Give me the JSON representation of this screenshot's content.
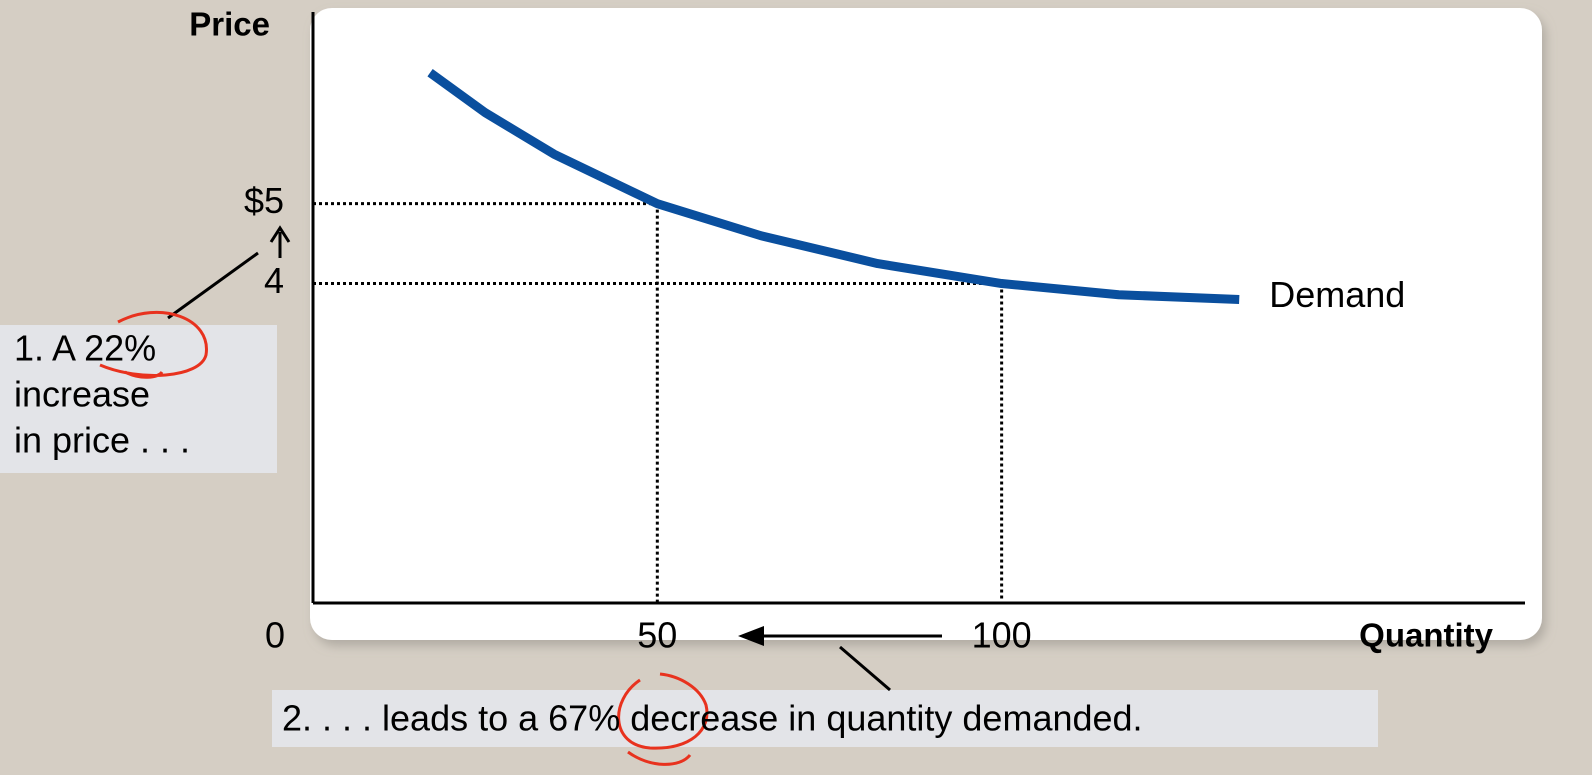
{
  "chart_data": {
    "type": "line",
    "xlabel": "Quantity",
    "ylabel": "Price",
    "x": [
      17,
      25,
      35,
      50,
      65,
      82,
      100,
      117,
      134.5
    ],
    "series": [
      {
        "name": "Demand",
        "color": "#0a4f9e",
        "values": [
          6.64,
          6.14,
          5.62,
          5.0,
          4.6,
          4.25,
          4.0,
          3.86,
          3.8
        ]
      }
    ],
    "xlim": [
      0,
      176
    ],
    "ylim": [
      0,
      7.4
    ],
    "xticks": [
      0,
      50,
      100
    ],
    "yticks": [
      4,
      {
        "value": 5,
        "label": "$5"
      }
    ],
    "guides": [
      {
        "x": 50,
        "y": 5
      },
      {
        "x": 100,
        "y": 4
      }
    ],
    "annotations": [
      {
        "lines": [
          "1. A 22%",
          "increase",
          "in price . . ."
        ]
      },
      {
        "lines": [
          "2. . . . leads to a 67% decrease in quantity demanded."
        ]
      }
    ]
  }
}
